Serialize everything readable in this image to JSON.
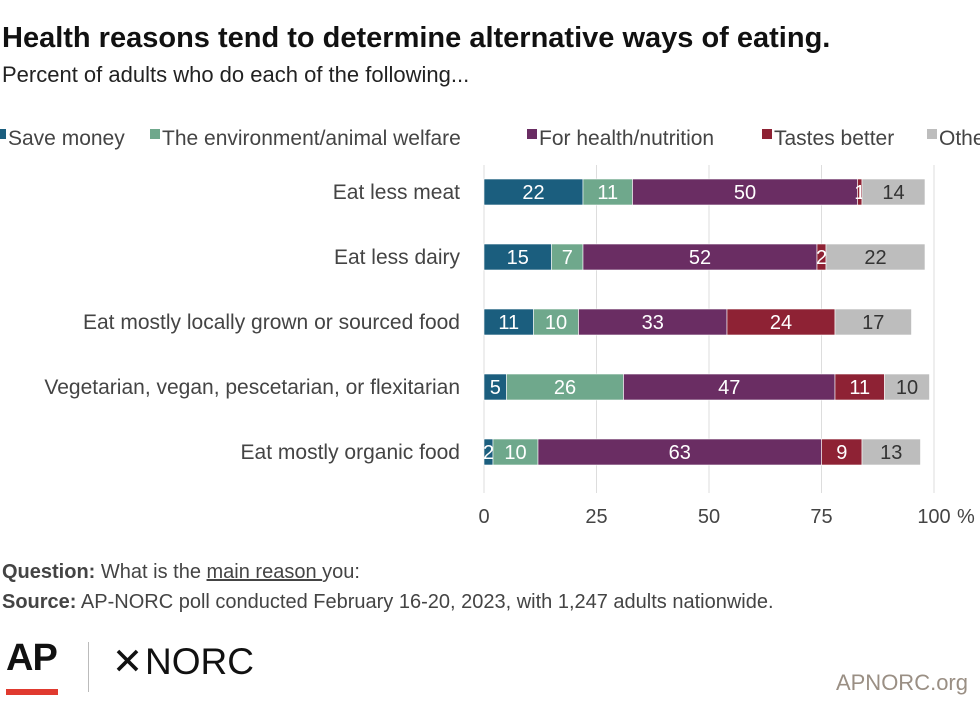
{
  "title": "Health reasons tend to determine alternative ways of eating.",
  "subtitle": "Percent of adults who do each of the following...",
  "chart_data": {
    "type": "bar",
    "orientation": "horizontal",
    "stacked": true,
    "categories": [
      "Eat less meat",
      "Eat  less dairy",
      "Eat mostly locally grown or sourced food",
      "Vegetarian, vegan, pescetarian, or flexitarian",
      "Eat mostly organic food"
    ],
    "series": [
      {
        "name": "Save money",
        "color": "#1b5e7e",
        "values": [
          22,
          15,
          11,
          5,
          2
        ]
      },
      {
        "name": "The environment/animal welfare",
        "color": "#6fa88c",
        "values": [
          11,
          7,
          10,
          26,
          10
        ]
      },
      {
        "name": "For health/nutrition",
        "color": "#6a2d63",
        "values": [
          50,
          52,
          33,
          47,
          63
        ]
      },
      {
        "name": "Tastes better",
        "color": "#8e2234",
        "values": [
          1,
          2,
          24,
          11,
          9
        ]
      },
      {
        "name": "Other",
        "color": "#bdbdbd",
        "values": [
          14,
          22,
          17,
          10,
          13
        ]
      }
    ],
    "xlim": [
      0,
      100
    ],
    "xticks": [
      "0",
      "25",
      "50",
      "75",
      "100"
    ],
    "xunit": "%",
    "grid": true,
    "legend_position": "top"
  },
  "footer": {
    "question_label": "Question:",
    "question_pre": "What is the",
    "question_underlined": "main reason ",
    "question_post": "you:",
    "source_label": "Source:",
    "source_text": "AP-NORC poll conducted February 16-20, 2023, with 1,247 adults nationwide.",
    "ap_logo": "AP",
    "norc_star": "✕",
    "norc_logo": "NORC",
    "site": "APNORC.org"
  },
  "colors": {
    "ap_red": "#e03a2f",
    "site_text": "#9a8f84"
  }
}
